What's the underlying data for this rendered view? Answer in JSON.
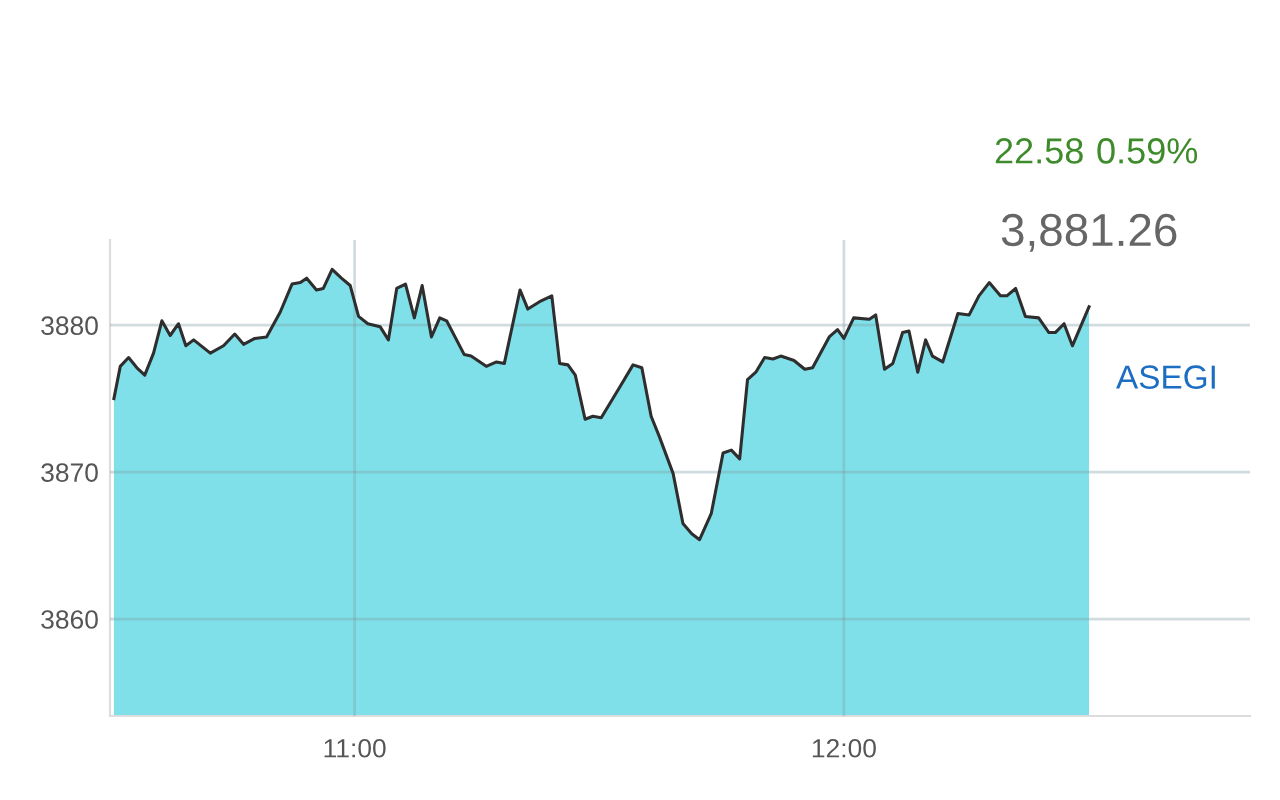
{
  "chart_data": {
    "type": "area",
    "x": [
      10.508,
      10.521,
      10.538,
      10.555,
      10.571,
      10.589,
      10.606,
      10.623,
      10.64,
      10.655,
      10.671,
      10.705,
      10.732,
      10.755,
      10.773,
      10.796,
      10.82,
      10.848,
      10.872,
      10.889,
      10.902,
      10.922,
      10.936,
      10.954,
      10.973,
      10.991,
      11.008,
      11.027,
      11.052,
      11.069,
      11.086,
      11.104,
      11.122,
      11.138,
      11.157,
      11.174,
      11.188,
      11.224,
      11.238,
      11.269,
      11.29,
      11.306,
      11.338,
      11.354,
      11.378,
      11.403,
      11.419,
      11.436,
      11.451,
      11.471,
      11.487,
      11.504,
      11.542,
      11.569,
      11.587,
      11.606,
      11.623,
      11.651,
      11.671,
      11.689,
      11.705,
      11.729,
      11.753,
      11.77,
      11.787,
      11.803,
      11.82,
      11.838,
      11.855,
      11.871,
      11.898,
      11.92,
      11.936,
      11.97,
      11.987,
      12.0,
      12.02,
      12.052,
      12.065,
      12.083,
      12.1,
      12.12,
      12.133,
      12.151,
      12.167,
      12.181,
      12.202,
      12.233,
      12.256,
      12.276,
      12.297,
      12.32,
      12.333,
      12.351,
      12.371,
      12.398,
      12.419,
      12.432,
      12.45,
      12.467,
      12.501
    ],
    "series": [
      {
        "color": "#80e0ea",
        "values": [
          3875.0,
          3877.2,
          3877.8,
          3877.1,
          3876.6,
          3878.1,
          3880.3,
          3879.3,
          3880.1,
          3878.6,
          3879.0,
          3878.1,
          3878.6,
          3879.4,
          3878.7,
          3879.1,
          3879.2,
          3880.9,
          3882.8,
          3882.9,
          3883.2,
          3882.4,
          3882.5,
          3883.8,
          3883.2,
          3882.7,
          3880.6,
          3880.1,
          3879.9,
          3879.0,
          3882.5,
          3882.8,
          3880.5,
          3882.7,
          3879.2,
          3880.5,
          3880.3,
          3878.0,
          3877.9,
          3877.2,
          3877.5,
          3877.4,
          3882.4,
          3881.1,
          3881.6,
          3882.0,
          3877.4,
          3877.3,
          3876.6,
          3873.6,
          3873.8,
          3873.7,
          3875.8,
          3877.3,
          3877.1,
          3873.8,
          3872.4,
          3869.9,
          3866.5,
          3865.8,
          3865.4,
          3867.2,
          3871.3,
          3871.5,
          3870.9,
          3876.3,
          3876.8,
          3877.8,
          3877.7,
          3877.9,
          3877.6,
          3877.0,
          3877.1,
          3879.2,
          3879.7,
          3879.1,
          3880.5,
          3880.4,
          3880.7,
          3877.0,
          3877.4,
          3879.5,
          3879.6,
          3876.8,
          3879.0,
          3877.9,
          3877.5,
          3880.8,
          3880.7,
          3882.0,
          3882.9,
          3882.0,
          3882.0,
          3882.5,
          3880.6,
          3880.5,
          3879.5,
          3879.5,
          3880.1,
          3878.6,
          3881.26
        ]
      }
    ],
    "xlim": [
      10.5,
      12.83
    ],
    "xticks": [
      {
        "value": 11,
        "label": "11:00"
      },
      {
        "value": 12,
        "label": "12:00"
      }
    ],
    "ylim": [
      3853.4,
      3885.8
    ],
    "yticks": [
      3860,
      3870,
      3880
    ],
    "grid": true,
    "annotations": [
      "22.58",
      "0.59%",
      "3,881.26",
      "ASEGI"
    ]
  }
}
